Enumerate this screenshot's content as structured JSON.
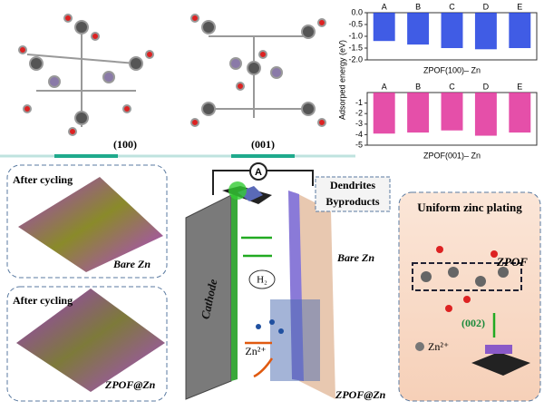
{
  "labels": {
    "facet_100": "(100)",
    "facet_001": "(001)",
    "after_cycling_top": "After cycling",
    "surface_top": "Bare Zn",
    "after_cycling_bottom": "After cycling",
    "surface_bottom": "ZPOF@Zn",
    "ammeter": "A",
    "dendrites": "Dendrites",
    "byproducts": "Byproducts",
    "cathode": "Cathode",
    "anode_top": "Bare Zn",
    "gas": "H₂",
    "ion_left": "Zn²⁺",
    "anode_bottom": "ZPOF@Zn",
    "plating_title": "Uniform zinc plating",
    "zpof": "ZPOF",
    "plane": "(002)",
    "ion_right": "Zn²⁺"
  },
  "chart_data": [
    {
      "type": "bar",
      "title": "ZPOF(100)– Zn",
      "ylabel": "Adsorped energy (eV)",
      "categories": [
        "A",
        "B",
        "C",
        "D",
        "E"
      ],
      "values": [
        -1.2,
        -1.35,
        -1.5,
        -1.55,
        -1.5
      ],
      "color": "#1f3fe0",
      "ylim": [
        0,
        -2
      ],
      "yticks": [
        {
          "value": 0,
          "label": "0.0"
        },
        -0.5,
        {
          "value": -1,
          "label": "-1.0"
        },
        -1.5,
        {
          "value": -2,
          "label": "-2.0"
        }
      ]
    },
    {
      "type": "bar",
      "title": "ZPOF(001)– Zn",
      "categories": [
        "A",
        "B",
        "C",
        "D",
        "E"
      ],
      "values": [
        -3.9,
        -3.8,
        -3.6,
        -4.1,
        -3.8
      ],
      "color": "#e0309a",
      "ylim": [
        0,
        -5
      ],
      "yticks": [
        -1,
        -2,
        -3,
        -4,
        -5
      ]
    }
  ]
}
